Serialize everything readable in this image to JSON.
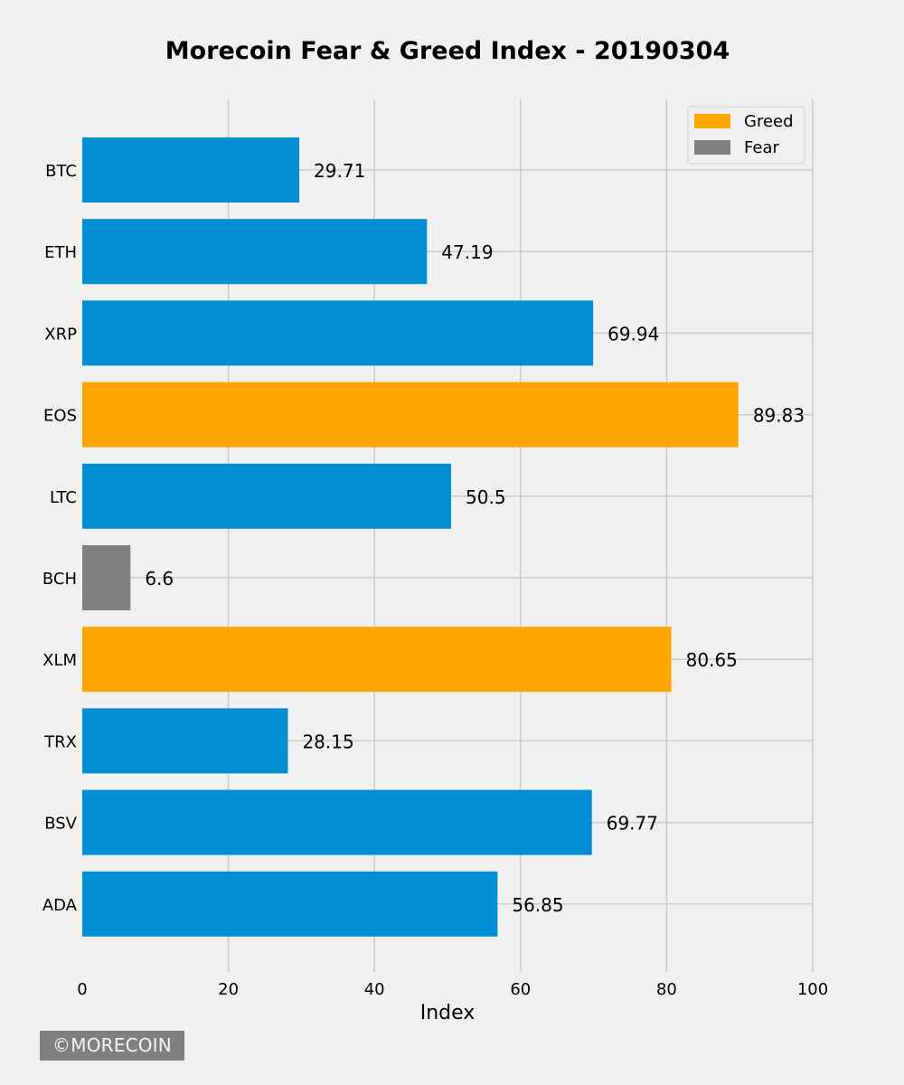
{
  "chart_data": {
    "type": "bar",
    "orientation": "horizontal",
    "title": "Morecoin Fear & Greed Index - 20190304",
    "xlabel": "Index",
    "ylabel": "",
    "xlim": [
      0,
      100
    ],
    "x_ticks": [
      "0",
      "20",
      "40",
      "60",
      "80",
      "100"
    ],
    "grid": true,
    "legend_position": "top-right",
    "categories": [
      "BTC",
      "ETH",
      "XRP",
      "EOS",
      "LTC",
      "BCH",
      "XLM",
      "TRX",
      "BSV",
      "ADA"
    ],
    "values": [
      29.71,
      47.19,
      69.94,
      89.83,
      50.5,
      6.6,
      80.65,
      28.15,
      69.77,
      56.85
    ],
    "value_labels": [
      "29.71",
      "47.19",
      "69.94",
      "89.83",
      "50.5",
      "6.6",
      "80.65",
      "28.15",
      "69.77",
      "56.85"
    ],
    "bar_classes": [
      "neutral",
      "neutral",
      "neutral",
      "greed",
      "neutral",
      "fear",
      "greed",
      "neutral",
      "neutral",
      "neutral"
    ],
    "legend": [
      {
        "label": "Greed",
        "class": "greed"
      },
      {
        "label": "Fear",
        "class": "fear"
      }
    ]
  },
  "colors": {
    "background": "#f0f0f0",
    "grid": "#cbcbcb",
    "neutral": "#008fd5",
    "greed": "#ffa500",
    "fear": "#808080",
    "watermark_bg": "#808080",
    "watermark_text": "#f4f4f4"
  },
  "watermark": "©MORECOIN"
}
